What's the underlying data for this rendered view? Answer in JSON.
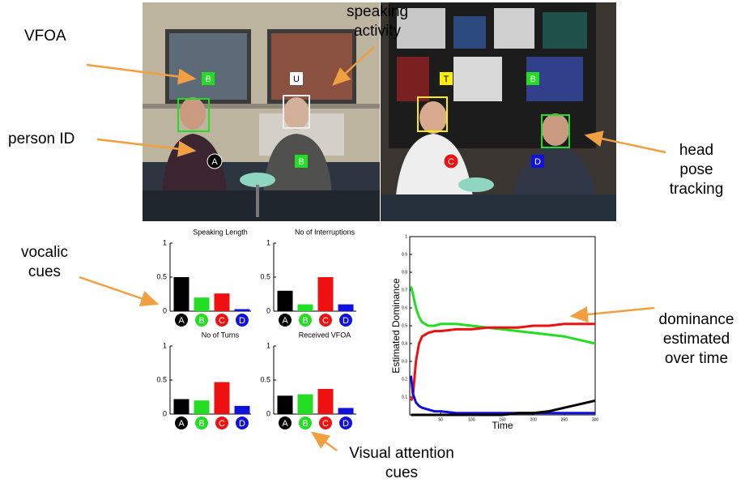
{
  "annotations": [
    {
      "lines": [
        "VFOA"
      ]
    },
    {
      "lines": [
        "speaking",
        "activity"
      ]
    },
    {
      "lines": [
        "person ID"
      ]
    },
    {
      "lines": [
        "head",
        "pose",
        "tracking"
      ]
    },
    {
      "lines": [
        "vocalic",
        "cues"
      ]
    },
    {
      "lines": [
        "dominance",
        "estimated",
        "over time"
      ]
    },
    {
      "lines": [
        "Visual attention",
        "cues"
      ]
    }
  ],
  "video_labels": [
    "B",
    "U",
    "A",
    "B",
    "T",
    "B",
    "C",
    "D"
  ],
  "chart_data": [
    {
      "type": "bar",
      "title": "Speaking Length",
      "categories": [
        "A",
        "B",
        "C",
        "D"
      ],
      "values": [
        0.5,
        0.2,
        0.26,
        0.03
      ],
      "colors": [
        "#000000",
        "#22dd22",
        "#ee1111",
        "#1111dd"
      ],
      "ylim": [
        0,
        1
      ],
      "yticks": [
        0,
        0.5,
        1
      ]
    },
    {
      "type": "bar",
      "title": "No of Interruptions",
      "categories": [
        "A",
        "B",
        "C",
        "D"
      ],
      "values": [
        0.3,
        0.1,
        0.5,
        0.1
      ],
      "colors": [
        "#000000",
        "#22dd22",
        "#ee1111",
        "#1111dd"
      ],
      "ylim": [
        0,
        1
      ],
      "yticks": [
        0,
        0.5,
        1
      ]
    },
    {
      "type": "bar",
      "title": "No of Turns",
      "categories": [
        "A",
        "B",
        "C",
        "D"
      ],
      "values": [
        0.22,
        0.2,
        0.47,
        0.12
      ],
      "colors": [
        "#000000",
        "#22dd22",
        "#ee1111",
        "#1111dd"
      ],
      "ylim": [
        0,
        1
      ],
      "yticks": [
        0,
        0.5,
        1
      ]
    },
    {
      "type": "bar",
      "title": "Received VFOA",
      "categories": [
        "A",
        "B",
        "C",
        "D"
      ],
      "values": [
        0.27,
        0.29,
        0.37,
        0.09
      ],
      "colors": [
        "#000000",
        "#22dd22",
        "#ee1111",
        "#1111dd"
      ],
      "ylim": [
        0,
        1
      ],
      "yticks": [
        0,
        0.5,
        1
      ]
    },
    {
      "type": "line",
      "x_label": "Time",
      "y_label": "Estimated Dominance",
      "x": [
        2,
        5,
        10,
        15,
        20,
        30,
        40,
        50,
        75,
        100,
        125,
        150,
        175,
        200,
        225,
        250,
        275,
        300
      ],
      "series": [
        {
          "color": "#22dd22",
          "values": [
            0.72,
            0.68,
            0.6,
            0.55,
            0.52,
            0.5,
            0.5,
            0.51,
            0.51,
            0.5,
            0.49,
            0.48,
            0.47,
            0.46,
            0.45,
            0.44,
            0.42,
            0.4
          ]
        },
        {
          "color": "#ee1111",
          "values": [
            0.08,
            0.1,
            0.3,
            0.4,
            0.44,
            0.46,
            0.47,
            0.47,
            0.48,
            0.48,
            0.49,
            0.49,
            0.49,
            0.5,
            0.5,
            0.51,
            0.51,
            0.51
          ]
        },
        {
          "color": "#1111dd",
          "values": [
            0.22,
            0.12,
            0.07,
            0.05,
            0.04,
            0.03,
            0.02,
            0.02,
            0.01,
            0.01,
            0.01,
            0.01,
            0.01,
            0.01,
            0.01,
            0.01,
            0.01,
            0.01
          ]
        },
        {
          "color": "#000000",
          "values": [
            0,
            0,
            0,
            0,
            0,
            0,
            0,
            0,
            0,
            0,
            0,
            0,
            0.01,
            0.01,
            0.02,
            0.04,
            0.06,
            0.08
          ]
        }
      ],
      "xlim": [
        0,
        300
      ],
      "ylim": [
        0,
        1
      ],
      "xticks": [
        50,
        100,
        150,
        200,
        250,
        300
      ],
      "yticks": [
        0.1,
        0.2,
        0.3,
        0.4,
        0.5,
        0.6,
        0.7,
        0.8,
        0.9,
        1
      ]
    }
  ]
}
